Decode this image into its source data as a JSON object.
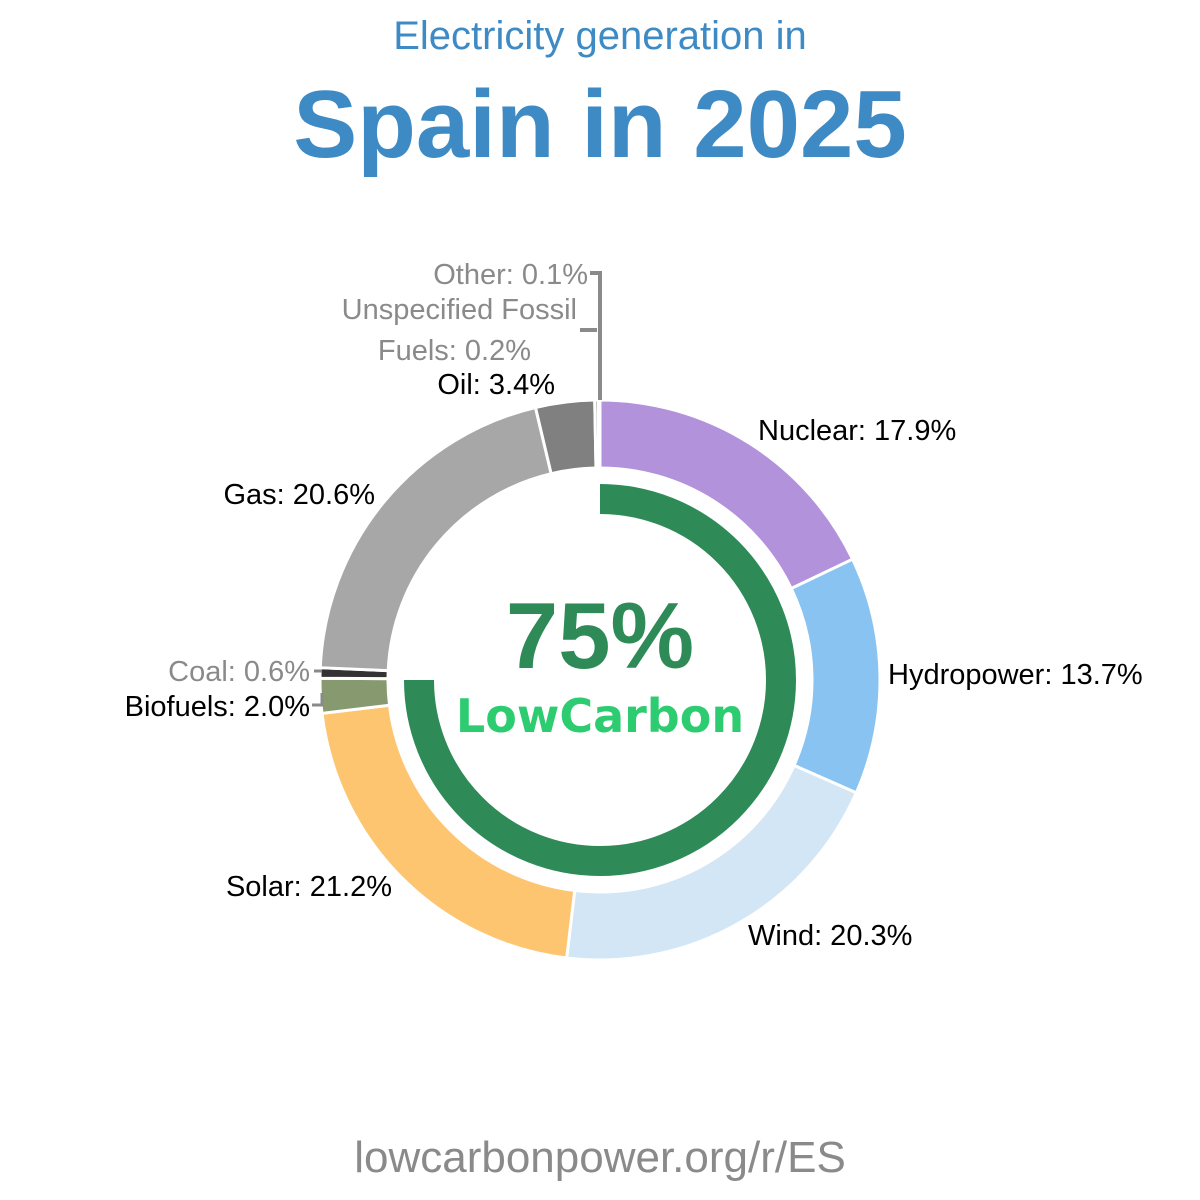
{
  "header": {
    "subtitle": "Electricity generation in",
    "title": "Spain in 2025"
  },
  "footer": {
    "url": "lowcarbonpower.org/r/ES"
  },
  "center": {
    "percent": "75%",
    "label": "LowCarbon",
    "low_carbon_share": 0.75
  },
  "colors": {
    "title": "#3e8ac4",
    "low_carbon_ring": "#2e8b57",
    "low_carbon_text": "#2ecc71",
    "muted_label": "#8a8a8a",
    "label": "#000000"
  },
  "chart_data": {
    "type": "pie",
    "donut": true,
    "slices": [
      {
        "name": "Nuclear",
        "value": 17.9,
        "label": "Nuclear: 17.9%",
        "color": "#b192db"
      },
      {
        "name": "Hydropower",
        "value": 13.7,
        "label": "Hydropower: 13.7%",
        "color": "#88c3f2"
      },
      {
        "name": "Wind",
        "value": 20.3,
        "label": "Wind: 20.3%",
        "color": "#d2e6f6"
      },
      {
        "name": "Solar",
        "value": 21.2,
        "label": "Solar: 21.2%",
        "color": "#fec571"
      },
      {
        "name": "Biofuels",
        "value": 2.0,
        "label": "Biofuels: 2.0%",
        "color": "#87996e"
      },
      {
        "name": "Coal",
        "value": 0.6,
        "label": "Coal: 0.6%",
        "color": "#333333"
      },
      {
        "name": "Gas",
        "value": 20.6,
        "label": "Gas: 20.6%",
        "color": "#a7a7a7"
      },
      {
        "name": "Oil",
        "value": 3.4,
        "label": "Oil: 3.4%",
        "color": "#808080"
      },
      {
        "name": "Unspecified Fossil Fuels",
        "value": 0.2,
        "label_line1": "Unspecified Fossil",
        "label_line2": "Fuels: 0.2%",
        "color": "#666666"
      },
      {
        "name": "Other",
        "value": 0.1,
        "label": "Other: 0.1%",
        "color": "#9a9a9a"
      }
    ]
  }
}
